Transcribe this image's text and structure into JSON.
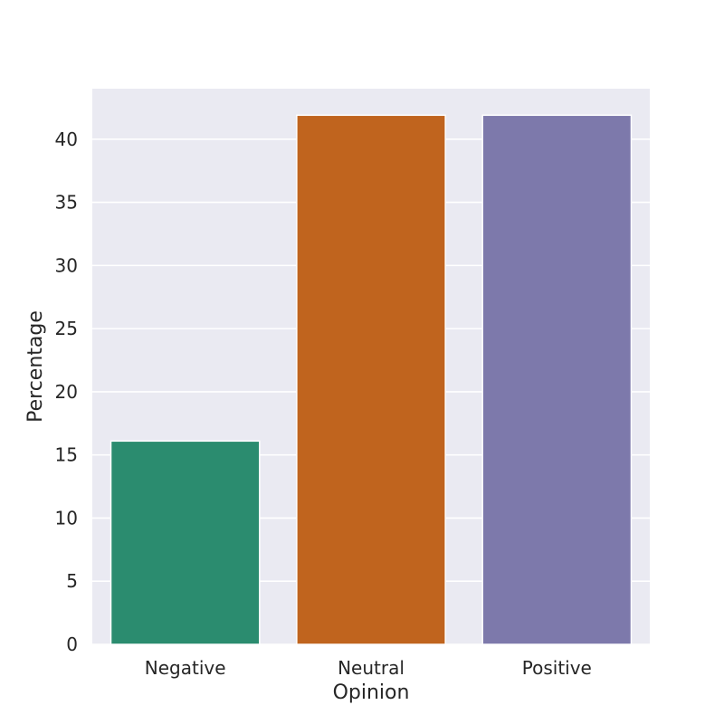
{
  "chart_data": {
    "type": "bar",
    "categories": [
      "Negative",
      "Neutral",
      "Positive"
    ],
    "values": [
      16.1,
      41.9,
      41.9
    ],
    "colors": [
      "#2b8c6f",
      "#c0641e",
      "#7d79ab"
    ],
    "title": "",
    "xlabel": "Opinion",
    "ylabel": "Percentage",
    "ylim": [
      0,
      44
    ],
    "yticks": [
      0,
      5,
      10,
      15,
      20,
      25,
      30,
      35,
      40
    ],
    "grid": true,
    "legend": "none",
    "background_color": "#eaeaf2",
    "grid_color": "#ffffff"
  }
}
